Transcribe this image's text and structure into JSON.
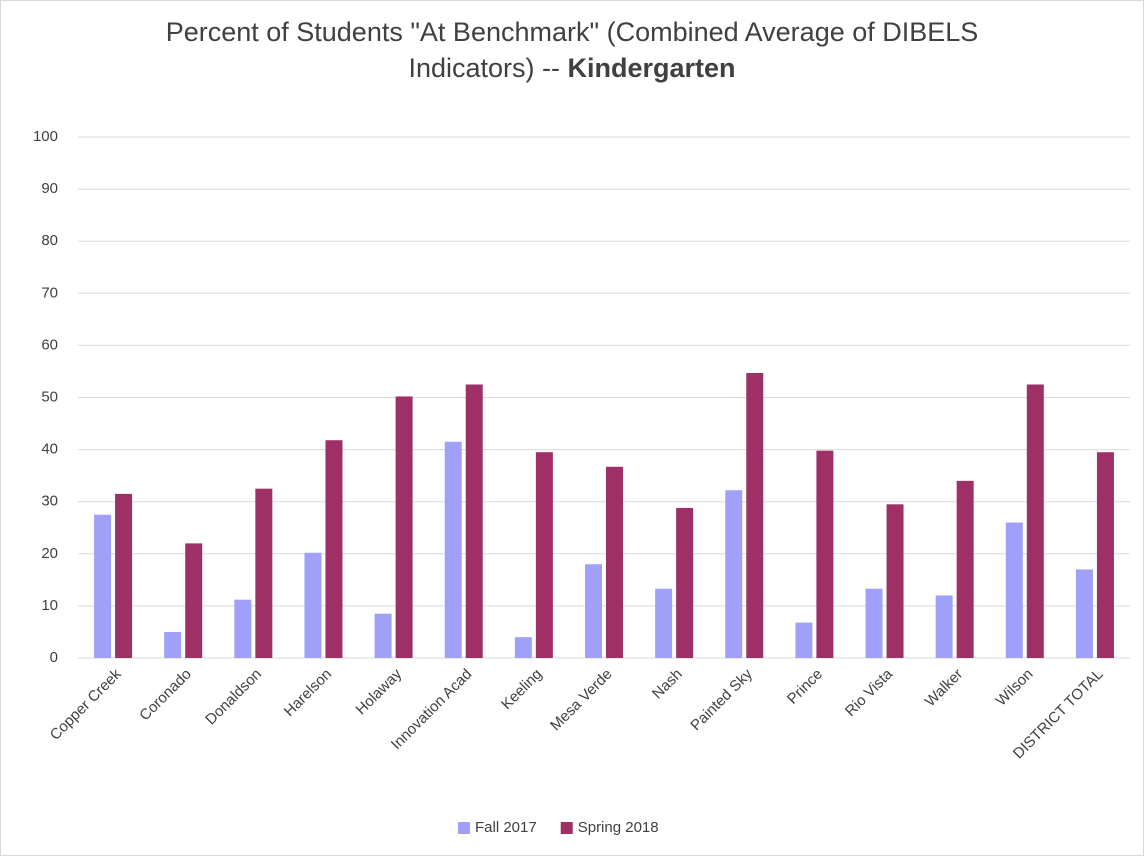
{
  "chart_data": {
    "type": "bar",
    "title": "Percent of Students \"At Benchmark\" (Combined Average of DIBELS Indicators) --",
    "title_bold": "Kindergarten",
    "categories": [
      "Copper Creek",
      "Coronado",
      "Donaldson",
      "Harelson",
      "Holaway",
      "Innovation Acad",
      "Keeling",
      "Mesa Verde",
      "Nash",
      "Painted Sky",
      "Prince",
      "Rio Vista",
      "Walker",
      "Wilson",
      "DISTRICT TOTAL"
    ],
    "series": [
      {
        "name": "Fall 2017",
        "color": "#a0a0f8",
        "values": [
          27.5,
          5,
          11.2,
          20.2,
          8.5,
          41.5,
          4,
          18,
          13.3,
          32.2,
          6.8,
          13.3,
          12,
          26,
          17
        ]
      },
      {
        "name": "Spring 2018",
        "color": "#9e3066",
        "values": [
          31.5,
          22,
          32.5,
          41.8,
          50.2,
          52.5,
          39.5,
          36.7,
          28.8,
          54.7,
          39.8,
          29.5,
          34,
          52.5,
          39.5
        ]
      }
    ],
    "ylim": [
      0,
      100
    ],
    "yticks": [
      0,
      10,
      20,
      30,
      40,
      50,
      60,
      70,
      80,
      90,
      100
    ],
    "grid": true,
    "legend": "bottom"
  }
}
